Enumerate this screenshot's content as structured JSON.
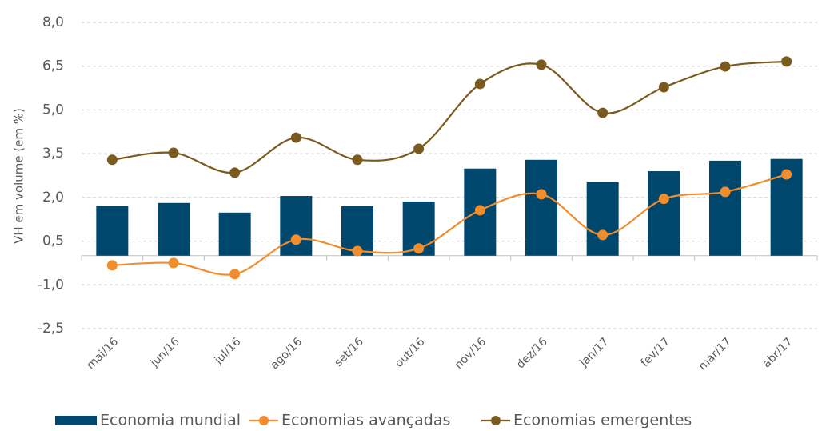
{
  "chart_data": {
    "type": "bar-line",
    "y_label": "VH em volume (em %)",
    "categories": [
      "mai/16",
      "jun/16",
      "jul/16",
      "ago/16",
      "set/16",
      "out/16",
      "nov/16",
      "dez/16",
      "jan/17",
      "fev/17",
      "mar/17",
      "abr/17"
    ],
    "series": [
      {
        "name": "Economia mundial",
        "type": "bar",
        "color": "#00476e",
        "values": [
          1.7,
          1.81,
          1.48,
          2.05,
          1.7,
          1.86,
          2.99,
          3.29,
          2.52,
          2.9,
          3.26,
          3.32
        ]
      },
      {
        "name": "Economias avançadas",
        "type": "line",
        "color": "#f18d2d",
        "values": [
          -0.33,
          -0.25,
          -0.63,
          0.55,
          0.16,
          0.25,
          1.56,
          2.11,
          0.71,
          1.95,
          2.19,
          2.79
        ]
      },
      {
        "name": "Economias emergentes",
        "type": "line",
        "color": "#7b5b1d",
        "values": [
          3.29,
          3.53,
          2.85,
          4.05,
          3.29,
          3.67,
          5.89,
          6.55,
          4.9,
          5.78,
          6.49,
          6.66
        ]
      }
    ],
    "ylim": [
      -2.5,
      8.0
    ],
    "yticks": [
      {
        "value": -2.5,
        "label": "-2,5"
      },
      {
        "value": -1.0,
        "label": "-1,0"
      },
      {
        "value": 0.5,
        "label": "0,5"
      },
      {
        "value": 2.0,
        "label": "2,0"
      },
      {
        "value": 3.5,
        "label": "3,5"
      },
      {
        "value": 5.0,
        "label": "5,0"
      },
      {
        "value": 6.5,
        "label": "6,5"
      },
      {
        "value": 8.0,
        "label": "8,0"
      }
    ],
    "grid": true
  }
}
